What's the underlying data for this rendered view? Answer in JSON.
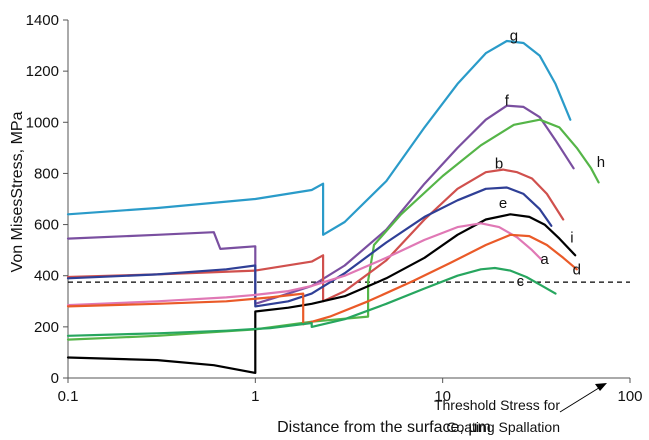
{
  "chart_data": {
    "type": "line",
    "title": "",
    "xlabel": "Distance  from  the  surface, μm",
    "ylabel": "Von  MisesStress,  MPa",
    "xscale": "log",
    "xlim": [
      0.1,
      100
    ],
    "ylim": [
      0,
      1400
    ],
    "xticks": [
      0.1,
      1,
      10,
      100
    ],
    "xtick_labels": [
      "0.1",
      "1",
      "10",
      "100"
    ],
    "yticks": [
      0,
      200,
      400,
      600,
      800,
      1000,
      1200,
      1400
    ],
    "ytick_labels": [
      "0",
      "200",
      "400",
      "600",
      "800",
      "1000",
      "1200",
      "1400"
    ],
    "grid": false,
    "legend": "none",
    "threshold": {
      "y": 375,
      "label_line1": "Threshold Stress for",
      "label_line2": "Coating Spallation",
      "color": "#000000"
    },
    "series": [
      {
        "name": "g",
        "color": "#2a9bc9",
        "label_at": [
          24,
          1320
        ],
        "points": [
          [
            0.1,
            640
          ],
          [
            0.3,
            665
          ],
          [
            1,
            700
          ],
          [
            2,
            735
          ],
          [
            2.3,
            760
          ],
          [
            2.3,
            560
          ],
          [
            3,
            610
          ],
          [
            5,
            770
          ],
          [
            8,
            980
          ],
          [
            12,
            1150
          ],
          [
            17,
            1270
          ],
          [
            22,
            1318
          ],
          [
            27,
            1310
          ],
          [
            33,
            1260
          ],
          [
            40,
            1150
          ],
          [
            48,
            1010
          ]
        ]
      },
      {
        "name": "f",
        "color": "#7a4fa0",
        "label_at": [
          22,
          1065
        ],
        "points": [
          [
            0.1,
            545
          ],
          [
            0.3,
            560
          ],
          [
            0.6,
            570
          ],
          [
            0.65,
            505
          ],
          [
            0.8,
            510
          ],
          [
            1,
            515
          ],
          [
            1,
            290
          ],
          [
            1.5,
            330
          ],
          [
            2,
            360
          ],
          [
            3,
            440
          ],
          [
            5,
            580
          ],
          [
            8,
            760
          ],
          [
            12,
            900
          ],
          [
            17,
            1010
          ],
          [
            22,
            1065
          ],
          [
            27,
            1060
          ],
          [
            33,
            1020
          ],
          [
            40,
            930
          ],
          [
            50,
            820
          ]
        ]
      },
      {
        "name": "h",
        "color": "#55b548",
        "label_at": [
          70,
          825
        ],
        "points": [
          [
            0.1,
            150
          ],
          [
            0.3,
            165
          ],
          [
            1,
            190
          ],
          [
            2,
            220
          ],
          [
            4,
            240
          ],
          [
            4,
            380
          ],
          [
            4.3,
            520
          ],
          [
            6,
            640
          ],
          [
            10,
            790
          ],
          [
            16,
            910
          ],
          [
            24,
            990
          ],
          [
            33,
            1010
          ],
          [
            42,
            980
          ],
          [
            52,
            900
          ],
          [
            62,
            820
          ],
          [
            68,
            765
          ]
        ]
      },
      {
        "name": "b",
        "color": "#d0504d",
        "label_at": [
          20,
          820
        ],
        "points": [
          [
            0.1,
            395
          ],
          [
            0.3,
            405
          ],
          [
            1,
            420
          ],
          [
            2,
            455
          ],
          [
            2.3,
            480
          ],
          [
            2.3,
            300
          ],
          [
            3,
            340
          ],
          [
            5,
            460
          ],
          [
            8,
            620
          ],
          [
            12,
            740
          ],
          [
            17,
            805
          ],
          [
            21,
            815
          ],
          [
            25,
            805
          ],
          [
            30,
            780
          ],
          [
            36,
            720
          ],
          [
            44,
            620
          ]
        ]
      },
      {
        "name": "e",
        "color": "#2f3f96",
        "label_at": [
          21,
          665
        ],
        "points": [
          [
            0.1,
            390
          ],
          [
            0.3,
            405
          ],
          [
            0.7,
            425
          ],
          [
            1,
            440
          ],
          [
            1,
            280
          ],
          [
            1.5,
            300
          ],
          [
            2,
            330
          ],
          [
            3,
            410
          ],
          [
            5,
            530
          ],
          [
            8,
            630
          ],
          [
            12,
            695
          ],
          [
            17,
            740
          ],
          [
            22,
            745
          ],
          [
            27,
            720
          ],
          [
            33,
            660
          ],
          [
            38,
            595
          ]
        ]
      },
      {
        "name": "i",
        "color": "#000000",
        "label_at": [
          49,
          530
        ],
        "points": [
          [
            0.1,
            80
          ],
          [
            0.3,
            70
          ],
          [
            0.6,
            50
          ],
          [
            1,
            20
          ],
          [
            1,
            260
          ],
          [
            1.5,
            275
          ],
          [
            2,
            290
          ],
          [
            3,
            320
          ],
          [
            5,
            390
          ],
          [
            8,
            470
          ],
          [
            12,
            560
          ],
          [
            17,
            620
          ],
          [
            23,
            640
          ],
          [
            29,
            630
          ],
          [
            35,
            600
          ],
          [
            42,
            545
          ],
          [
            51,
            480
          ]
        ]
      },
      {
        "name": "a",
        "color": "#e078b5",
        "label_at": [
          35,
          445
        ],
        "points": [
          [
            0.1,
            285
          ],
          [
            0.3,
            300
          ],
          [
            0.7,
            315
          ],
          [
            1,
            325
          ],
          [
            1.5,
            340
          ],
          [
            2,
            360
          ],
          [
            3,
            400
          ],
          [
            5,
            470
          ],
          [
            8,
            540
          ],
          [
            12,
            590
          ],
          [
            16,
            605
          ],
          [
            20,
            590
          ],
          [
            25,
            550
          ],
          [
            30,
            500
          ],
          [
            34,
            460
          ]
        ]
      },
      {
        "name": "d",
        "color": "#ea5a28",
        "label_at": [
          52,
          405
        ],
        "points": [
          [
            0.1,
            280
          ],
          [
            0.3,
            290
          ],
          [
            0.7,
            300
          ],
          [
            1.2,
            315
          ],
          [
            1.8,
            330
          ],
          [
            1.8,
            210
          ],
          [
            2.5,
            240
          ],
          [
            4,
            300
          ],
          [
            7,
            380
          ],
          [
            11,
            450
          ],
          [
            17,
            520
          ],
          [
            23,
            560
          ],
          [
            29,
            555
          ],
          [
            36,
            520
          ],
          [
            44,
            470
          ],
          [
            52,
            425
          ]
        ]
      },
      {
        "name": "c",
        "color": "#27a65f",
        "label_at": [
          26,
          360
        ],
        "points": [
          [
            0.1,
            165
          ],
          [
            0.3,
            175
          ],
          [
            0.7,
            185
          ],
          [
            1.2,
            195
          ],
          [
            2,
            215
          ],
          [
            2,
            200
          ],
          [
            3,
            230
          ],
          [
            5,
            290
          ],
          [
            8,
            350
          ],
          [
            12,
            400
          ],
          [
            16,
            425
          ],
          [
            19,
            430
          ],
          [
            23,
            420
          ],
          [
            28,
            395
          ],
          [
            34,
            360
          ],
          [
            40,
            330
          ]
        ]
      }
    ]
  }
}
